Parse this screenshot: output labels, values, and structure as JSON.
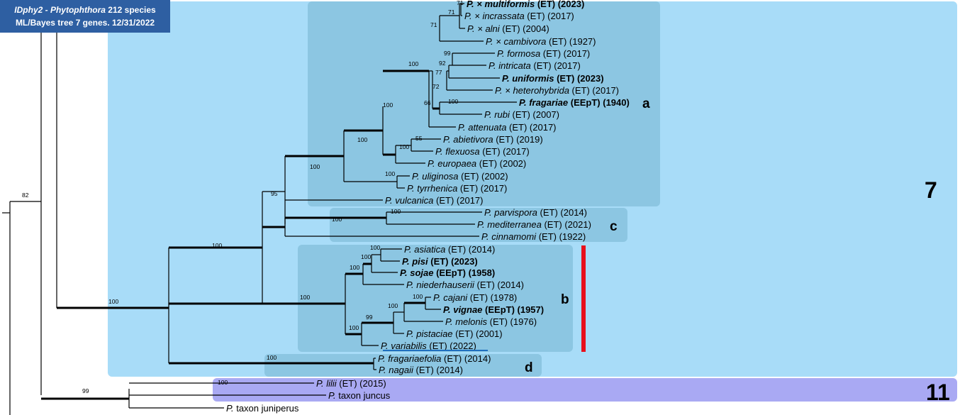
{
  "title": {
    "line1_italic": "IDphy2 - Phytophthora",
    "line1_rest": " 212 species",
    "line2": "ML/Bayes tree 7 genes. 12/31/2022"
  },
  "clades": {
    "clade7": "7",
    "clade11": "11",
    "sub_a": "a",
    "sub_b": "b",
    "sub_c": "c",
    "sub_d": "d"
  },
  "colors": {
    "clade7_bg": "#a8dcf8",
    "subclade_bg": "#8cc6e2",
    "clade11_bg": "#a9a9f3",
    "title_bg": "#2e5fa2",
    "red_marker": "#e8101c",
    "underline": "#1f6fbf"
  },
  "taxa": [
    {
      "id": "multiformis",
      "prefix": "P. × ",
      "name": "multiformis",
      "suffix": " (ET) (2023)",
      "bold": true
    },
    {
      "id": "incrassata",
      "prefix": "P. × ",
      "name": "incrassata",
      "suffix": " (ET) (2017)",
      "bold": false
    },
    {
      "id": "alni",
      "prefix": "P. × ",
      "name": "alni",
      "suffix": " (ET) (2004)",
      "bold": false
    },
    {
      "id": "cambivora",
      "prefix": "P. × ",
      "name": "cambivora",
      "suffix": " (ET) (1927)",
      "bold": false
    },
    {
      "id": "formosa",
      "prefix": "P. ",
      "name": "formosa",
      "suffix": " (ET) (2017)",
      "bold": false
    },
    {
      "id": "intricata",
      "prefix": "P. ",
      "name": "intricata",
      "suffix": " (ET) (2017)",
      "bold": false
    },
    {
      "id": "uniformis",
      "prefix": "P. ",
      "name": "uniformis",
      "suffix": " (ET) (2023)",
      "bold": true
    },
    {
      "id": "heterohybrida",
      "prefix": "P. × ",
      "name": "heterohybrida",
      "suffix": " (ET) (2017)",
      "bold": false
    },
    {
      "id": "fragariae",
      "prefix": "P. ",
      "name": "fragariae",
      "suffix": " (EEpT) (1940)",
      "bold": true
    },
    {
      "id": "rubi",
      "prefix": "P. ",
      "name": "rubi",
      "suffix": " (ET) (2007)",
      "bold": false
    },
    {
      "id": "attenuata",
      "prefix": "P. ",
      "name": "attenuata",
      "suffix": " (ET) (2017)",
      "bold": false
    },
    {
      "id": "abietivora",
      "prefix": "P. ",
      "name": "abietivora",
      "suffix": " (ET) (2019)",
      "bold": false
    },
    {
      "id": "flexuosa",
      "prefix": "P. ",
      "name": "flexuosa",
      "suffix": " (ET) (2017)",
      "bold": false
    },
    {
      "id": "europaea",
      "prefix": "P. ",
      "name": "europaea",
      "suffix": "  (ET) (2002)",
      "bold": false
    },
    {
      "id": "uliginosa",
      "prefix": "P. ",
      "name": "uliginosa",
      "suffix": " (ET) (2002)",
      "bold": false
    },
    {
      "id": "tyrrhenica",
      "prefix": "P. ",
      "name": "tyrrhenica",
      "suffix": " (ET) (2017)",
      "bold": false
    },
    {
      "id": "vulcanica",
      "prefix": "P. ",
      "name": "vulcanica",
      "suffix": " (ET) (2017)",
      "bold": false
    },
    {
      "id": "parvispora",
      "prefix": "P. ",
      "name": "parvispora",
      "suffix": " (ET) (2014)",
      "bold": false
    },
    {
      "id": "mediterranea",
      "prefix": "P. ",
      "name": "mediterranea",
      "suffix": " (ET) (2021)",
      "bold": false
    },
    {
      "id": "cinnamomi",
      "prefix": "P. ",
      "name": "cinnamomi",
      "suffix": " (ET) (1922)",
      "bold": false
    },
    {
      "id": "asiatica",
      "prefix": "P. ",
      "name": "asiatica",
      "suffix": " (ET) (2014)",
      "bold": false
    },
    {
      "id": "pisi",
      "prefix": "P. ",
      "name": "pisi",
      "suffix": " (ET) (2023)",
      "bold": true
    },
    {
      "id": "sojae",
      "prefix": "P. ",
      "name": "sojae",
      "suffix": " (EEpT) (1958)",
      "bold": true
    },
    {
      "id": "niederhauserii",
      "prefix": "P. ",
      "name": "niederhauserii",
      "suffix": " (ET) (2014)",
      "bold": false
    },
    {
      "id": "cajani",
      "prefix": "P. ",
      "name": "cajani",
      "suffix": " (ET) (1978)",
      "bold": false
    },
    {
      "id": "vignae",
      "prefix": "P. ",
      "name": "vignae",
      "suffix": " (EEpT) (1957)",
      "bold": true
    },
    {
      "id": "melonis",
      "prefix": "P. ",
      "name": "melonis",
      "suffix": " (ET) (1976)",
      "bold": false
    },
    {
      "id": "pistaciae",
      "prefix": "P. ",
      "name": "pistaciae",
      "suffix": " (ET) (2001)",
      "bold": false
    },
    {
      "id": "variabilis",
      "prefix": "P. ",
      "name": "variabilis",
      "suffix": " (ET) (2022)",
      "bold": false
    },
    {
      "id": "fragariaefolia",
      "prefix": "P. ",
      "name": "fragariaefolia",
      "suffix": " (ET) (2014)",
      "bold": false
    },
    {
      "id": "nagaii",
      "prefix": "P. ",
      "name": "nagaii",
      "suffix": " (ET) (2014)",
      "bold": false
    },
    {
      "id": "lilii",
      "prefix": "P. ",
      "name": "lilii",
      "suffix": " (ET) (2015)",
      "bold": false
    },
    {
      "id": "taxon_juncus",
      "prefix": "P. ",
      "name": "",
      "suffix": "taxon juncus",
      "bold": false
    },
    {
      "id": "taxon_juniperus",
      "prefix": "P. ",
      "name": "",
      "suffix": "taxon juniperus",
      "bold": false
    }
  ],
  "support": [
    {
      "id": "s_mult_incr",
      "value": "71"
    },
    {
      "id": "s_mult_alni",
      "value": "71"
    },
    {
      "id": "s_cambivora",
      "value": "71"
    },
    {
      "id": "s_formosa",
      "value": "99"
    },
    {
      "id": "s_fi",
      "value": "92"
    },
    {
      "id": "s_uni",
      "value": "77"
    },
    {
      "id": "s_het",
      "value": "72"
    },
    {
      "id": "s_frag_rubi",
      "value": "100"
    },
    {
      "id": "s_66",
      "value": "66"
    },
    {
      "id": "s_core",
      "value": "100"
    },
    {
      "id": "s_abiet_flex",
      "value": "55"
    },
    {
      "id": "s_abiet_flex_eur",
      "value": "100"
    },
    {
      "id": "s_a_main",
      "value": "100"
    },
    {
      "id": "s_a_plus",
      "value": "100"
    },
    {
      "id": "s_uli_tyr",
      "value": "100"
    },
    {
      "id": "s_a_vulc",
      "value": "100"
    },
    {
      "id": "s_ac",
      "value": "95"
    },
    {
      "id": "s_parv_med",
      "value": "100"
    },
    {
      "id": "s_c",
      "value": "100"
    },
    {
      "id": "s_acb",
      "value": "100"
    },
    {
      "id": "s_asia_pisi",
      "value": "100"
    },
    {
      "id": "s_asia_pisi_soj",
      "value": "100"
    },
    {
      "id": "s_asia_nied",
      "value": "100"
    },
    {
      "id": "s_b",
      "value": "100"
    },
    {
      "id": "s_cajani",
      "value": "100"
    },
    {
      "id": "s_cajani_mel",
      "value": "100"
    },
    {
      "id": "s_vign",
      "value": "99"
    },
    {
      "id": "s_b2",
      "value": "100"
    },
    {
      "id": "s_d",
      "value": "100"
    },
    {
      "id": "s_7",
      "value": "100"
    },
    {
      "id": "s_82",
      "value": "82"
    },
    {
      "id": "s_11",
      "value": "100"
    },
    {
      "id": "s_99",
      "value": "99"
    }
  ]
}
